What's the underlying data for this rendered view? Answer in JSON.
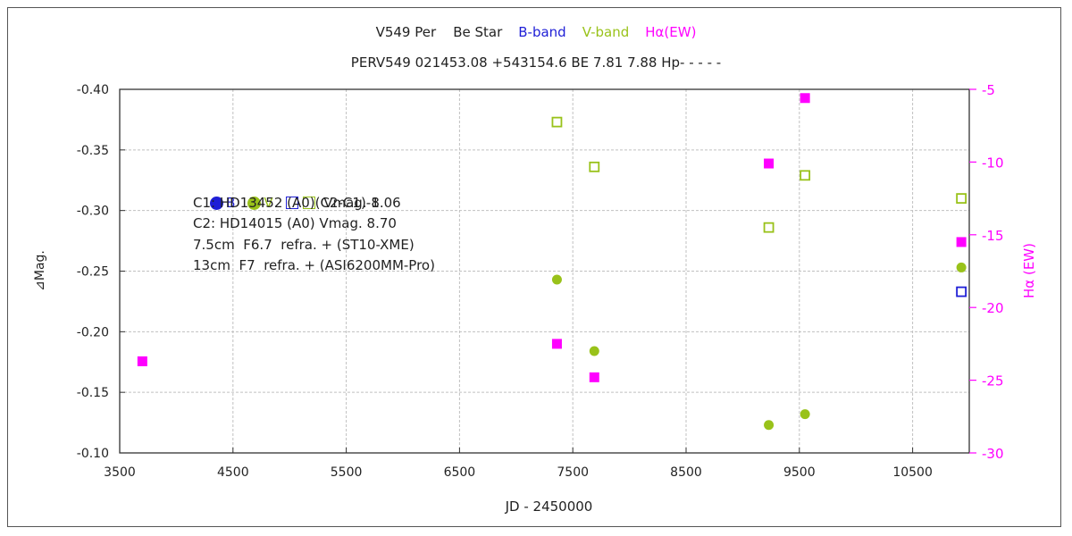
{
  "chart_data": {
    "type": "scatter",
    "title": "V549 Per    Be Star",
    "legend_title_items": [
      {
        "label": "B-band",
        "color": "#1f1fd6"
      },
      {
        "label": "V-band",
        "color": "#99c21a"
      },
      {
        "label": "Hα(EW)",
        "color": "#ff00ff"
      }
    ],
    "subtitle": "PERV549 021453.08 +543154.6 BE 7.81 7.88 Hp- - - - -",
    "xlabel": "JD - 2450000",
    "ylabel": "⊿Mag.",
    "y2label": "Hα (EW)",
    "xlim": [
      3500,
      11000
    ],
    "ylim": [
      -0.4,
      -0.1
    ],
    "y_inverted": true,
    "y2lim": [
      -5,
      -30
    ],
    "xticks": [
      3500,
      4500,
      5500,
      6500,
      7500,
      8500,
      9500,
      10500
    ],
    "yticks": [
      "-0.40",
      "-0.35",
      "-0.30",
      "-0.25",
      "-0.20",
      "-0.15",
      "-0.10"
    ],
    "y2ticks": [
      -5,
      -10,
      -15,
      -20,
      -25,
      -30
    ],
    "grid": true,
    "series": [
      {
        "name": "B",
        "marker": "filled-circle",
        "color": "#1f1fd6",
        "axis": "left",
        "points": []
      },
      {
        "name": "V",
        "marker": "filled-circle",
        "color": "#99c21a",
        "axis": "left",
        "points": [
          [
            7360,
            -0.243
          ],
          [
            7690,
            -0.184
          ],
          [
            9230,
            -0.123
          ],
          [
            9550,
            -0.132
          ],
          [
            10930,
            -0.253
          ]
        ]
      },
      {
        "name": "B (C2-C1)-1",
        "marker": "open-square",
        "color": "#1f1fd6",
        "axis": "left",
        "points": [
          [
            10930,
            -0.233
          ]
        ]
      },
      {
        "name": "V (C2-C1)-1",
        "marker": "open-square",
        "color": "#99c21a",
        "axis": "left",
        "points": [
          [
            7360,
            -0.373
          ],
          [
            7690,
            -0.336
          ],
          [
            9230,
            -0.286
          ],
          [
            9550,
            -0.329
          ],
          [
            10930,
            -0.31
          ]
        ]
      },
      {
        "name": "Hα(EW)",
        "marker": "filled-square",
        "color": "#ff00ff",
        "axis": "right",
        "points": [
          [
            3700,
            -23.7
          ],
          [
            7360,
            -22.5
          ],
          [
            7690,
            -24.8
          ],
          [
            9230,
            -10.1
          ],
          [
            9550,
            -5.6
          ],
          [
            10930,
            -15.5
          ]
        ]
      }
    ]
  },
  "legend": {
    "b_label": "B",
    "v_label": "V",
    "check_label": "(C2-C1)-1",
    "lines": [
      "C1: HD13452 (A0)  Vmag. 8.06",
      "C2: HD14015 (A0) Vmag. 8.70",
      "7.5cm  F6.7  refra. + (ST10-XME)",
      "13cm  F7  refra. + (ASI6200MM-Pro)"
    ]
  }
}
